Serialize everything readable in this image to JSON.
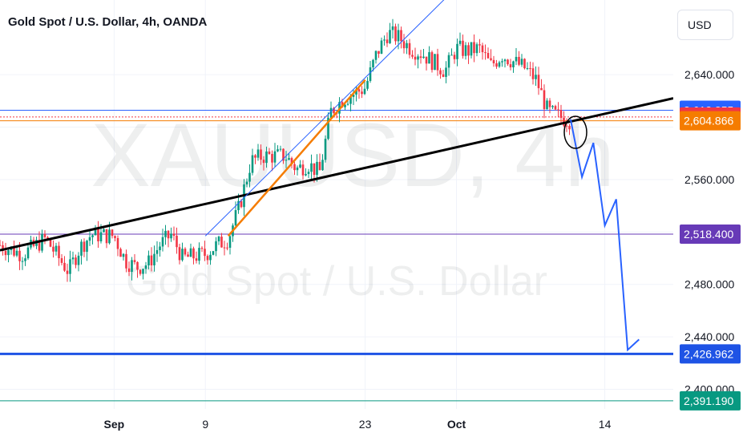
{
  "header": {
    "title": "Gold Spot / U.S. Dollar, 4h, OANDA",
    "currency_button": "USD"
  },
  "watermark": {
    "symbol": "XAUUSD, 4h",
    "name": "Gold Spot / U.S. Dollar"
  },
  "chart_data": {
    "type": "candlestick",
    "title": "Gold Spot / U.S. Dollar, 4h, OANDA",
    "x_tick_labels": [
      "Sep",
      "9",
      "23",
      "Oct",
      "14"
    ],
    "y_tick_labels": [
      "2,640.000",
      "2,560.000",
      "2,480.000",
      "2,440.000",
      "2,400.000"
    ],
    "ylim": [
      2385,
      2697
    ],
    "x_range": [
      "2024-08-22",
      "2024-10-20"
    ],
    "grid": true,
    "price_tags": [
      {
        "value": "2,612.855",
        "color": "#2962ff"
      },
      {
        "value": "2,607.735",
        "color": "#f23645"
      },
      {
        "value": "2,604.866",
        "color": "#f57c00"
      },
      {
        "value": "2,518.400",
        "color": "#673ab7"
      },
      {
        "value": "2,426.962",
        "color": "#1e53e5"
      },
      {
        "value": "2,391.190",
        "color": "#089981"
      }
    ],
    "candle_path": [
      [
        "2024-08-22",
        2510
      ],
      [
        "2024-08-24",
        2503
      ],
      [
        "2024-08-26",
        2515
      ],
      [
        "2024-08-27",
        2502
      ],
      [
        "2024-08-28",
        2490
      ],
      [
        "2024-08-29",
        2508
      ],
      [
        "2024-08-30",
        2518
      ],
      [
        "2024-09-01",
        2517
      ],
      [
        "2024-09-02",
        2498
      ],
      [
        "2024-09-03",
        2493
      ],
      [
        "2024-09-04",
        2496
      ],
      [
        "2024-09-05",
        2510
      ],
      [
        "2024-09-06",
        2518
      ],
      [
        "2024-09-07",
        2500
      ],
      [
        "2024-09-09",
        2503
      ],
      [
        "2024-09-10",
        2510
      ],
      [
        "2024-09-11",
        2515
      ],
      [
        "2024-09-12",
        2540
      ],
      [
        "2024-09-13",
        2574
      ],
      [
        "2024-09-14",
        2578
      ],
      [
        "2024-09-16",
        2578
      ],
      [
        "2024-09-17",
        2568
      ],
      [
        "2024-09-18",
        2572
      ],
      [
        "2024-09-19",
        2565
      ],
      [
        "2024-09-20",
        2612
      ],
      [
        "2024-09-21",
        2621
      ],
      [
        "2024-09-23",
        2630
      ],
      [
        "2024-09-24",
        2656
      ],
      [
        "2024-09-25",
        2672
      ],
      [
        "2024-09-26",
        2668
      ],
      [
        "2024-09-27",
        2660
      ],
      [
        "2024-09-28",
        2656
      ],
      [
        "2024-09-30",
        2643
      ],
      [
        "2024-10-01",
        2660
      ],
      [
        "2024-10-02",
        2658
      ],
      [
        "2024-10-03",
        2660
      ],
      [
        "2024-10-04",
        2647
      ],
      [
        "2024-10-05",
        2655
      ],
      [
        "2024-10-07",
        2645
      ],
      [
        "2024-10-08",
        2636
      ],
      [
        "2024-10-09",
        2612
      ],
      [
        "2024-10-10",
        2608
      ],
      [
        "2024-10-11",
        2605
      ]
    ],
    "horizontal_lines": [
      2612.855,
      2607.735,
      2604.866,
      2518.4,
      2426.962,
      2391.19
    ],
    "trendlines": [
      {
        "from": [
          "2024-08-22",
          2506
        ],
        "to": [
          "2024-10-20",
          2622
        ],
        "color": "#000000"
      },
      {
        "from": [
          "2024-09-11",
          2517
        ],
        "to": [
          "2024-09-23",
          2636
        ],
        "color": "#f57c00"
      },
      {
        "from": [
          "2024-09-09",
          2517
        ],
        "to": [
          "2024-09-30",
          2698
        ],
        "color": "#2962ff"
      }
    ],
    "projection_path": [
      [
        "2024-10-11",
        2606
      ],
      [
        "2024-10-12",
        2562
      ],
      [
        "2024-10-13",
        2588
      ],
      [
        "2024-10-14",
        2525
      ],
      [
        "2024-10-15",
        2545
      ],
      [
        "2024-10-16",
        2430
      ],
      [
        "2024-10-17",
        2438
      ]
    ],
    "projection_color": "#2962ff"
  }
}
